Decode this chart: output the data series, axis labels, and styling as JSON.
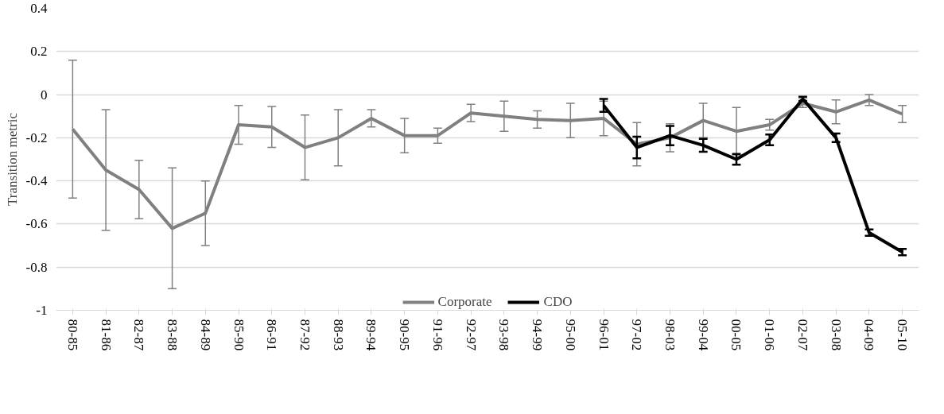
{
  "chart_data": {
    "type": "line",
    "ylabel": "Transition metric",
    "categories": [
      "80-85",
      "81-86",
      "82-87",
      "83-88",
      "84-89",
      "85-90",
      "86-91",
      "87-92",
      "88-93",
      "89-94",
      "90-95",
      "91-96",
      "92-97",
      "93-98",
      "94-99",
      "95-00",
      "96-01",
      "97-02",
      "98-03",
      "99-04",
      "00-05",
      "01-06",
      "02-07",
      "03-08",
      "04-09",
      "05-10"
    ],
    "series": [
      {
        "name": "Corporate",
        "color": "#808080",
        "values": [
          -0.16,
          -0.35,
          -0.44,
          -0.62,
          -0.55,
          -0.14,
          -0.15,
          -0.245,
          -0.2,
          -0.11,
          -0.19,
          -0.19,
          -0.085,
          -0.1,
          -0.115,
          -0.12,
          -0.11,
          -0.23,
          -0.2,
          -0.12,
          -0.17,
          -0.14,
          -0.04,
          -0.08,
          -0.025,
          -0.09
        ],
        "errors": [
          0.32,
          0.28,
          0.135,
          0.28,
          0.15,
          0.09,
          0.095,
          0.15,
          0.13,
          0.04,
          0.08,
          0.035,
          0.04,
          0.07,
          0.04,
          0.08,
          0.08,
          0.1,
          0.065,
          0.08,
          0.11,
          0.025,
          0.02,
          0.055,
          0.025,
          0.04
        ]
      },
      {
        "name": "CDO",
        "color": "#000000",
        "values": [
          null,
          null,
          null,
          null,
          null,
          null,
          null,
          null,
          null,
          null,
          null,
          null,
          null,
          null,
          null,
          null,
          -0.05,
          -0.245,
          -0.19,
          -0.235,
          -0.3,
          -0.21,
          -0.02,
          -0.2,
          -0.64,
          -0.73
        ],
        "errors": [
          null,
          null,
          null,
          null,
          null,
          null,
          null,
          null,
          null,
          null,
          null,
          null,
          null,
          null,
          null,
          null,
          0.03,
          0.05,
          0.045,
          0.03,
          0.025,
          0.025,
          0.01,
          0.02,
          0.015,
          0.015
        ]
      }
    ],
    "ylim": [
      -1,
      0.4
    ],
    "yticks": [
      0.4,
      0.2,
      0,
      -0.2,
      -0.4,
      -0.6,
      -0.8,
      -1
    ],
    "grid": "y",
    "legend": "bottom"
  }
}
